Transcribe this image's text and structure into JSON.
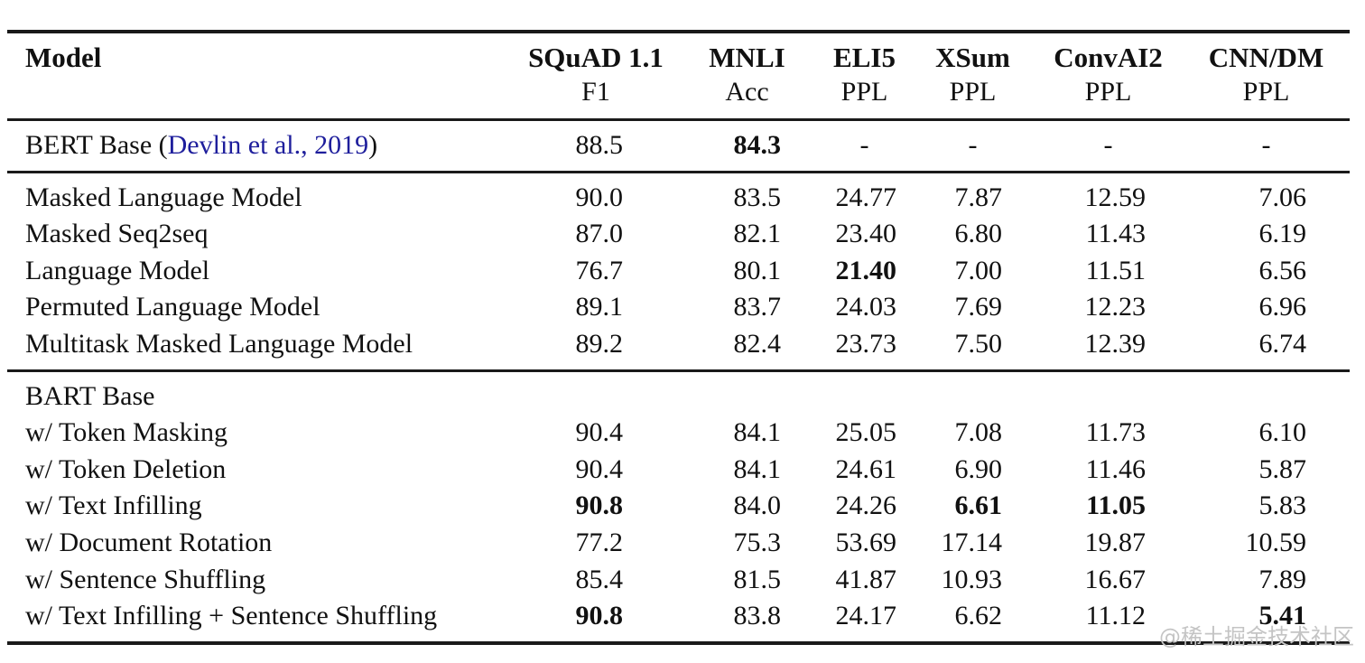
{
  "colors": {
    "text": "#111111",
    "rule": "#1a1a1a",
    "link": "#1e1e9c",
    "watermark": "#c4c4c4"
  },
  "watermark": "@稀土掘金技术社区",
  "table": {
    "columns": [
      {
        "key": "model",
        "label": "Model",
        "sublabel": ""
      },
      {
        "key": "squad",
        "label": "SQuAD 1.1",
        "sublabel": "F1"
      },
      {
        "key": "mnli",
        "label": "MNLI",
        "sublabel": "Acc"
      },
      {
        "key": "eli5",
        "label": "ELI5",
        "sublabel": "PPL"
      },
      {
        "key": "xsum",
        "label": "XSum",
        "sublabel": "PPL"
      },
      {
        "key": "convai2",
        "label": "ConvAI2",
        "sublabel": "PPL"
      },
      {
        "key": "cnndm",
        "label": "CNN/DM",
        "sublabel": "PPL"
      }
    ],
    "sections": [
      {
        "rows": [
          {
            "model": {
              "prefix": "BERT Base (",
              "link": "Devlin et al., 2019",
              "suffix": ")"
            },
            "values": [
              {
                "v": "88.5"
              },
              {
                "v": "84.3",
                "bold": true
              },
              {
                "v": "-",
                "dash": true
              },
              {
                "v": "-",
                "dash": true
              },
              {
                "v": "-",
                "dash": true
              },
              {
                "v": "-",
                "dash": true
              }
            ]
          }
        ]
      },
      {
        "rows": [
          {
            "model": {
              "text": "Masked Language Model"
            },
            "values": [
              {
                "v": "90.0"
              },
              {
                "v": "83.5"
              },
              {
                "v": "24.77"
              },
              {
                "v": "7.87"
              },
              {
                "v": "12.59"
              },
              {
                "v": "7.06"
              }
            ]
          },
          {
            "model": {
              "text": "Masked Seq2seq"
            },
            "values": [
              {
                "v": "87.0"
              },
              {
                "v": "82.1"
              },
              {
                "v": "23.40"
              },
              {
                "v": "6.80"
              },
              {
                "v": "11.43"
              },
              {
                "v": "6.19"
              }
            ]
          },
          {
            "model": {
              "text": "Language Model"
            },
            "values": [
              {
                "v": "76.7"
              },
              {
                "v": "80.1"
              },
              {
                "v": "21.40",
                "bold": true
              },
              {
                "v": "7.00"
              },
              {
                "v": "11.51"
              },
              {
                "v": "6.56"
              }
            ]
          },
          {
            "model": {
              "text": "Permuted Language Model"
            },
            "values": [
              {
                "v": "89.1"
              },
              {
                "v": "83.7"
              },
              {
                "v": "24.03"
              },
              {
                "v": "7.69"
              },
              {
                "v": "12.23"
              },
              {
                "v": "6.96"
              }
            ]
          },
          {
            "model": {
              "text": "Multitask Masked Language Model"
            },
            "values": [
              {
                "v": "89.2"
              },
              {
                "v": "82.4"
              },
              {
                "v": "23.73"
              },
              {
                "v": "7.50"
              },
              {
                "v": "12.39"
              },
              {
                "v": "6.74"
              }
            ]
          }
        ]
      },
      {
        "rows": [
          {
            "model": {
              "text": "BART Base"
            },
            "values": [
              {
                "v": ""
              },
              {
                "v": ""
              },
              {
                "v": ""
              },
              {
                "v": ""
              },
              {
                "v": ""
              },
              {
                "v": ""
              }
            ]
          },
          {
            "model": {
              "text": "w/ Token Masking"
            },
            "values": [
              {
                "v": "90.4"
              },
              {
                "v": "84.1"
              },
              {
                "v": "25.05"
              },
              {
                "v": "7.08"
              },
              {
                "v": "11.73"
              },
              {
                "v": "6.10"
              }
            ]
          },
          {
            "model": {
              "text": "w/ Token Deletion"
            },
            "values": [
              {
                "v": "90.4"
              },
              {
                "v": "84.1"
              },
              {
                "v": "24.61"
              },
              {
                "v": "6.90"
              },
              {
                "v": "11.46"
              },
              {
                "v": "5.87"
              }
            ]
          },
          {
            "model": {
              "text": "w/ Text Infilling"
            },
            "values": [
              {
                "v": "90.8",
                "bold": true
              },
              {
                "v": "84.0"
              },
              {
                "v": "24.26"
              },
              {
                "v": "6.61",
                "bold": true
              },
              {
                "v": "11.05",
                "bold": true
              },
              {
                "v": "5.83"
              }
            ]
          },
          {
            "model": {
              "text": "w/ Document Rotation"
            },
            "values": [
              {
                "v": "77.2"
              },
              {
                "v": "75.3"
              },
              {
                "v": "53.69"
              },
              {
                "v": "17.14"
              },
              {
                "v": "19.87"
              },
              {
                "v": "10.59"
              }
            ]
          },
          {
            "model": {
              "text": "w/ Sentence Shuffling"
            },
            "values": [
              {
                "v": "85.4"
              },
              {
                "v": "81.5"
              },
              {
                "v": "41.87"
              },
              {
                "v": "10.93"
              },
              {
                "v": "16.67"
              },
              {
                "v": "7.89"
              }
            ]
          },
          {
            "model": {
              "text": "w/ Text Infilling + Sentence Shuffling"
            },
            "values": [
              {
                "v": "90.8",
                "bold": true
              },
              {
                "v": "83.8"
              },
              {
                "v": "24.17"
              },
              {
                "v": "6.62"
              },
              {
                "v": "11.12"
              },
              {
                "v": "5.41",
                "bold": true
              }
            ]
          }
        ]
      }
    ]
  }
}
